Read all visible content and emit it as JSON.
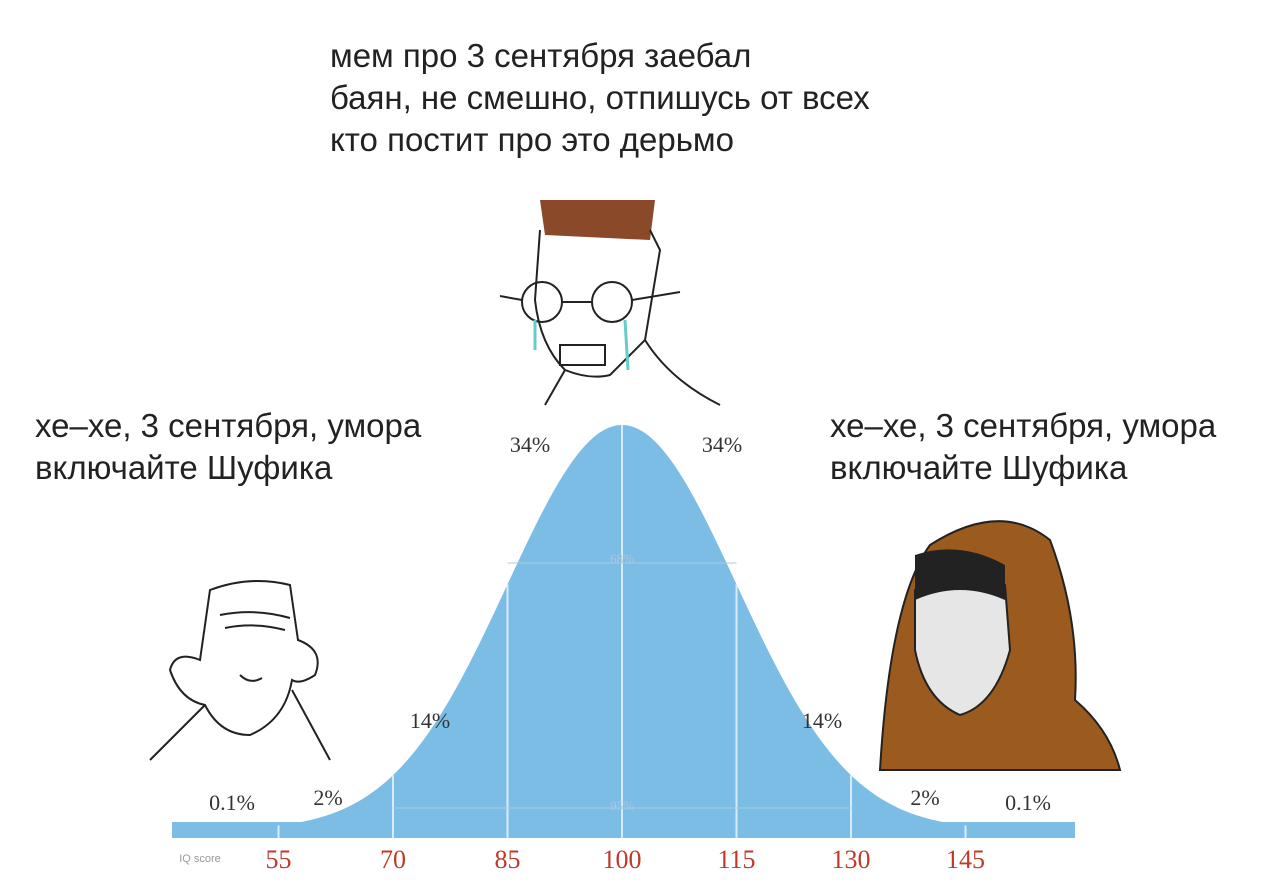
{
  "captions": {
    "top": [
      "мем про 3 сентября заебал",
      "баян, не смешно, отпишусь от всех",
      "кто постит про это дерьмо"
    ],
    "left": [
      "хе–хе, 3 сентября, умора",
      "включайте Шуфика"
    ],
    "right": [
      "хе–хе, 3 сентября, умора",
      "включайте Шуфика"
    ]
  },
  "chart": {
    "percent_labels": [
      "0.1%",
      "2%",
      "14%",
      "34%",
      "34%",
      "14%",
      "2%",
      "0.1%"
    ],
    "inner_labels": [
      "68%",
      "95%"
    ],
    "axis_title": "IQ score",
    "ticks": [
      55,
      70,
      85,
      100,
      115,
      130,
      145
    ]
  }
}
